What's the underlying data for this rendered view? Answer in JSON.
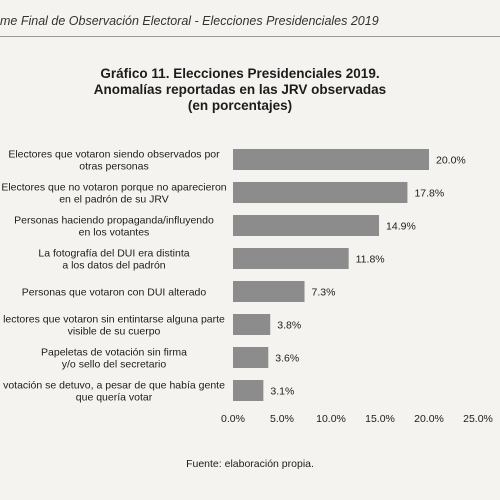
{
  "page_header": "me Final de Observación Electoral - Elecciones Presidenciales 2019",
  "title_lines": [
    "Gráfico 11.  Elecciones Presidenciales 2019.",
    "Anomalías reportadas en las JRV observadas",
    "(en porcentajes)"
  ],
  "source": "Fuente: elaboración propia.",
  "colors": {
    "bar": "#8c8c8c",
    "background": "#f4f3ef",
    "text": "#1c1c1c"
  },
  "chart_data": {
    "type": "bar",
    "orientation": "horizontal",
    "title": "Gráfico 11.  Elecciones Presidenciales 2019. Anomalías reportadas en las JRV observadas (en porcentajes)",
    "categories": [
      [
        "Electores que votaron siendo observados por",
        "otras personas"
      ],
      [
        "Electores que no votaron porque no aparecieron",
        "en el padrón de su JRV"
      ],
      [
        "Personas haciendo propaganda/influyendo",
        "en los votantes"
      ],
      [
        "La fotografía del DUI era distinta",
        "a los datos del padrón"
      ],
      [
        "Personas que votaron con DUI alterado"
      ],
      [
        "lectores que votaron sin entintarse alguna parte",
        "visible de su cuerpo"
      ],
      [
        "Papeletas de votación sin firma",
        "y/o sello del secretario"
      ],
      [
        "votación se detuvo, a pesar de que había gente",
        "que quería votar"
      ]
    ],
    "values": [
      20.0,
      17.8,
      14.9,
      11.8,
      7.3,
      3.8,
      3.6,
      3.1
    ],
    "value_labels": [
      "20.0%",
      "17.8%",
      "14.9%",
      "11.8%",
      "7.3%",
      "3.8%",
      "3.6%",
      "3.1%"
    ],
    "xlim": [
      0,
      25
    ],
    "xticks": [
      0,
      5,
      10,
      15,
      20,
      25
    ],
    "xtick_labels": [
      "0.0%",
      "5.0%",
      "10.0%",
      "15.0%",
      "20.0%",
      "25.0%"
    ],
    "grid": false,
    "legend": "none"
  }
}
